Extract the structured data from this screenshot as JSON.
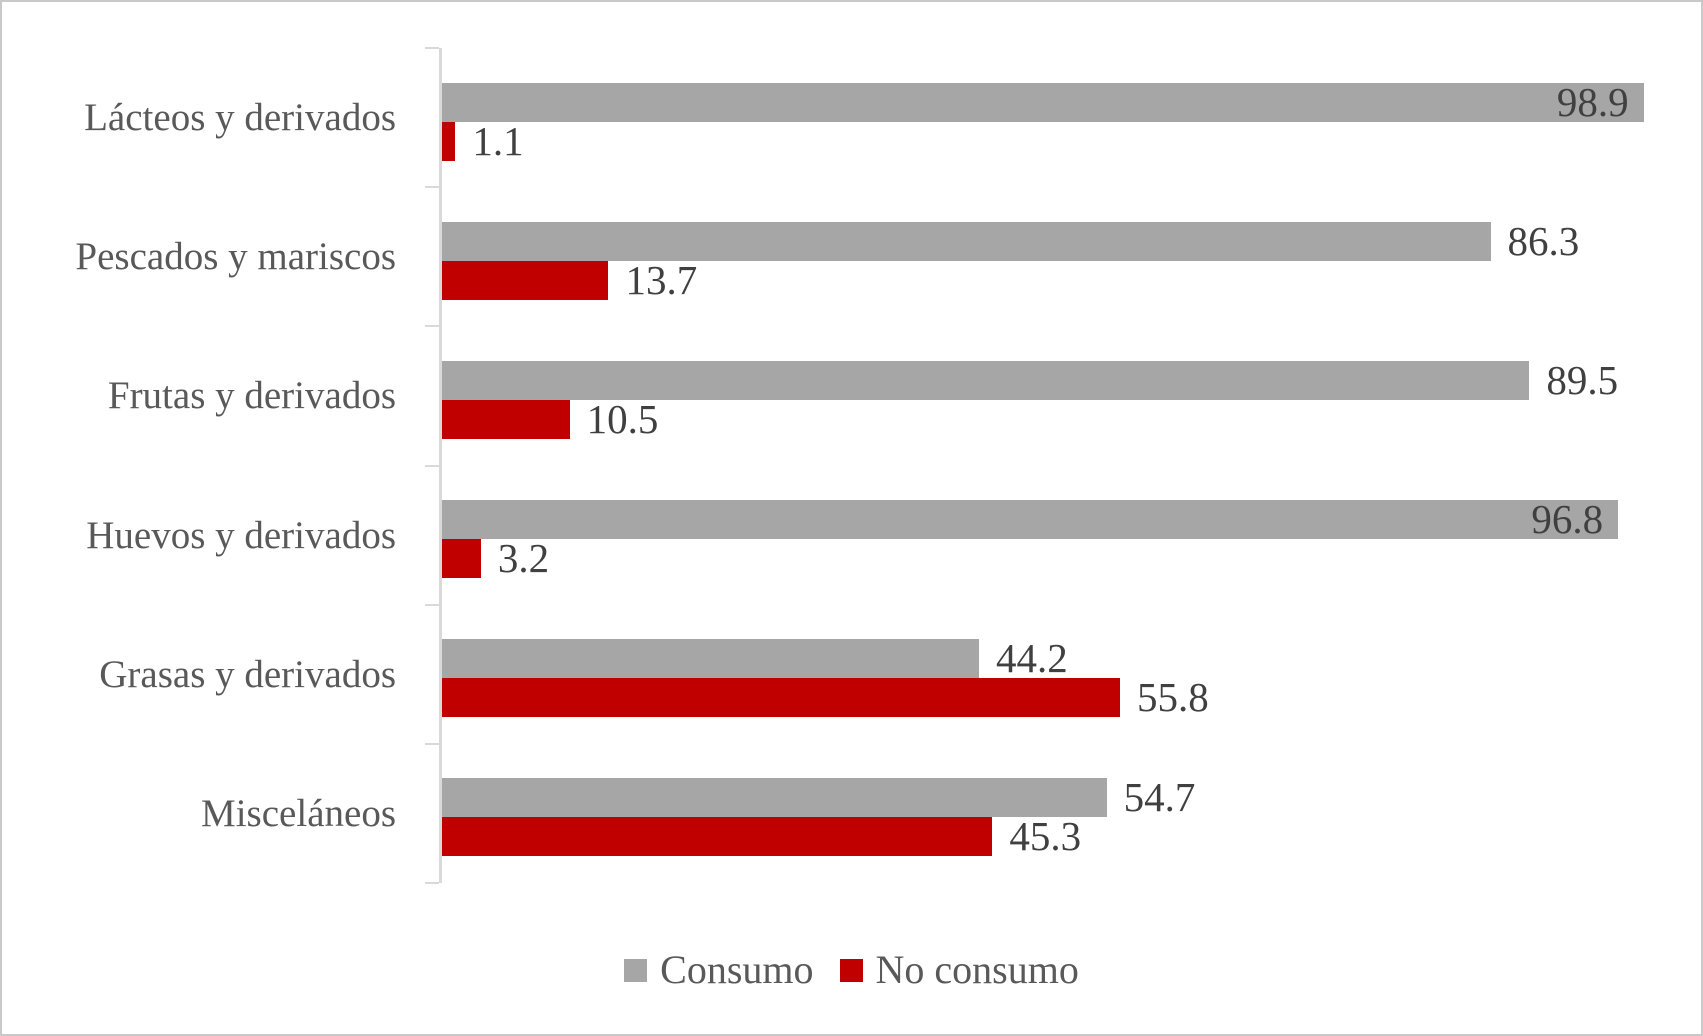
{
  "chart_data": {
    "type": "bar",
    "orientation": "horizontal",
    "title": "",
    "xlabel": "",
    "ylabel": "",
    "xlim": [
      0,
      100
    ],
    "grid": false,
    "legend_position": "bottom",
    "categories": [
      "Lácteos y derivados",
      "Pescados y mariscos",
      "Frutas y derivados",
      "Huevos y derivados",
      "Grasas y derivados",
      "Misceláneos"
    ],
    "series": [
      {
        "name": "Consumo",
        "color": "#a6a6a6",
        "values": [
          98.9,
          86.3,
          89.5,
          96.8,
          44.2,
          54.7
        ],
        "label_inside": [
          true,
          false,
          false,
          true,
          false,
          false
        ]
      },
      {
        "name": "No consumo",
        "color": "#c00000",
        "values": [
          1.1,
          13.7,
          10.5,
          3.2,
          55.8,
          45.3
        ],
        "label_inside": [
          false,
          false,
          false,
          false,
          false,
          false
        ]
      }
    ]
  },
  "colors": {
    "category_text": "#595959",
    "value_text": "#404040",
    "axis_line": "#d9d9d9",
    "frame_border": "#c9c9c9",
    "background": "#ffffff"
  }
}
